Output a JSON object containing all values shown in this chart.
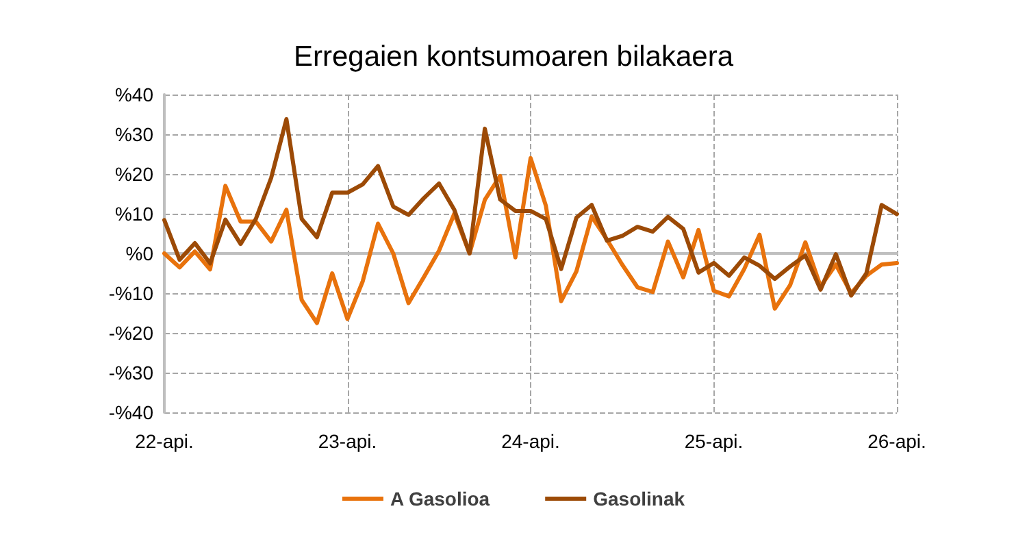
{
  "chart_data": {
    "type": "line",
    "title": "Erregaien kontsumoaren bilakaera",
    "categories": [
      "22-api.",
      null,
      null,
      null,
      null,
      null,
      null,
      null,
      null,
      null,
      null,
      null,
      "23-api.",
      null,
      null,
      null,
      null,
      null,
      null,
      null,
      null,
      null,
      null,
      null,
      "24-api.",
      null,
      null,
      null,
      null,
      null,
      null,
      null,
      null,
      null,
      null,
      null,
      "25-api.",
      null,
      null,
      null,
      null,
      null,
      null,
      null,
      null,
      null,
      null,
      null,
      "26-api."
    ],
    "series": [
      {
        "name": "A Gasolioa",
        "color": "#e8720c",
        "values": [
          0,
          -3.5,
          0.5,
          -4,
          17,
          8,
          8,
          3,
          11,
          -11.7,
          -17.5,
          -5,
          -16.5,
          -7,
          7.5,
          0,
          -12.5,
          -6,
          0.7,
          10,
          0,
          13.5,
          19.5,
          -1,
          24,
          12,
          -12,
          -4.5,
          9.3,
          3.5,
          -2.8,
          -8.5,
          -9.7,
          3,
          -6,
          5.9,
          -9.4,
          -10.8,
          -3.9,
          4.7,
          -13.9,
          -8,
          2.8,
          -8.3,
          -2.8,
          -10,
          -5.6,
          -2.8,
          -2.4
        ]
      },
      {
        "name": "Gasolinak",
        "color": "#9c4a06",
        "values": [
          8.4,
          -1.6,
          2.6,
          -2.5,
          8.5,
          2.4,
          8.7,
          19,
          33.8,
          8.7,
          4.1,
          15.3,
          15.3,
          17.4,
          22,
          11.8,
          9.7,
          13.9,
          17.6,
          11,
          0,
          31.4,
          13.6,
          10.7,
          10.7,
          8.7,
          -3.9,
          9,
          12.2,
          3.2,
          4.4,
          6.7,
          5.5,
          9.2,
          6.2,
          -4.8,
          -2.4,
          -5.6,
          -1,
          -3.1,
          -6.4,
          -3.3,
          -0.5,
          -9.1,
          -0.2,
          -10.6,
          -5,
          12.2,
          9.9
        ]
      }
    ],
    "ylim": [
      -40,
      40
    ],
    "yticks": [
      {
        "value": -40,
        "label": "-%40"
      },
      {
        "value": -30,
        "label": "-%30"
      },
      {
        "value": -20,
        "label": "-%20"
      },
      {
        "value": -10,
        "label": "-%10"
      },
      {
        "value": 0,
        "label": "%0"
      },
      {
        "value": 10,
        "label": "%10"
      },
      {
        "value": 20,
        "label": "%20"
      },
      {
        "value": 30,
        "label": "%30"
      },
      {
        "value": 40,
        "label": "%40"
      }
    ],
    "grid": true,
    "legend": "bottom",
    "marker": "none",
    "line_style": "solid"
  }
}
